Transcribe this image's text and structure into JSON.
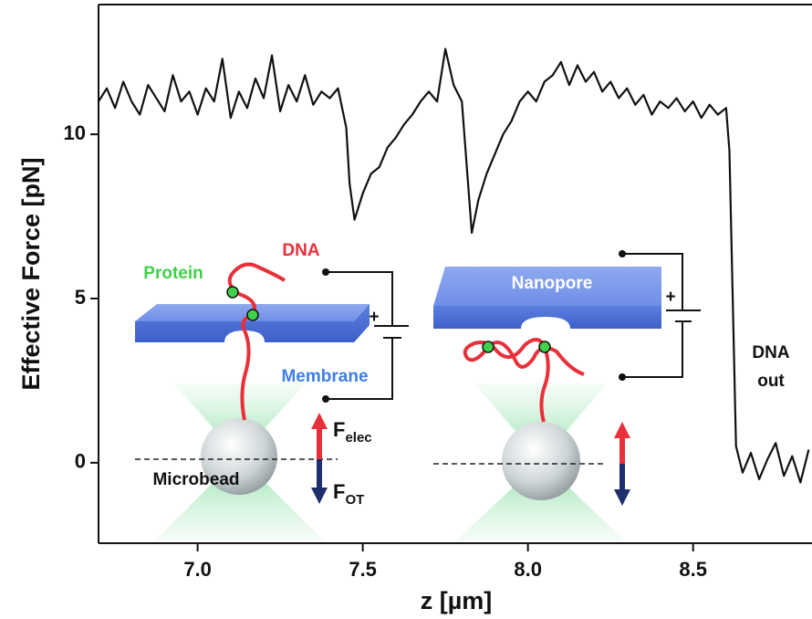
{
  "chart_data": {
    "type": "line",
    "x_label": "z [µm]",
    "y_label": "Effective Force [pN]",
    "color": "#111111",
    "x": [
      6.7,
      6.725,
      6.75,
      6.775,
      6.8,
      6.825,
      6.85,
      6.875,
      6.9,
      6.925,
      6.95,
      6.975,
      7.0,
      7.025,
      7.05,
      7.075,
      7.1,
      7.125,
      7.15,
      7.175,
      7.2,
      7.225,
      7.25,
      7.275,
      7.3,
      7.325,
      7.35,
      7.375,
      7.4,
      7.425,
      7.45,
      7.46,
      7.475,
      7.5,
      7.525,
      7.55,
      7.575,
      7.6,
      7.625,
      7.65,
      7.675,
      7.7,
      7.725,
      7.75,
      7.775,
      7.8,
      7.815,
      7.83,
      7.85,
      7.875,
      7.9,
      7.925,
      7.95,
      7.975,
      8.0,
      8.025,
      8.05,
      8.075,
      8.1,
      8.125,
      8.15,
      8.175,
      8.2,
      8.225,
      8.25,
      8.275,
      8.3,
      8.325,
      8.35,
      8.375,
      8.4,
      8.425,
      8.45,
      8.475,
      8.5,
      8.525,
      8.55,
      8.575,
      8.6,
      8.61,
      8.62,
      8.63,
      8.65,
      8.675,
      8.7,
      8.725,
      8.75,
      8.775,
      8.8,
      8.825,
      8.85
    ],
    "values": [
      11.0,
      11.4,
      10.8,
      11.6,
      11.0,
      10.6,
      11.5,
      11.1,
      10.7,
      11.8,
      11.0,
      11.3,
      10.6,
      11.4,
      11.0,
      12.3,
      10.5,
      11.3,
      10.8,
      11.7,
      11.1,
      12.4,
      10.7,
      11.5,
      11.0,
      11.8,
      10.9,
      11.3,
      11.1,
      11.4,
      10.2,
      8.5,
      7.4,
      8.2,
      8.8,
      9.0,
      9.6,
      9.9,
      10.3,
      10.6,
      11.0,
      11.3,
      11.0,
      12.6,
      11.5,
      11.0,
      9.0,
      7.0,
      8.0,
      8.8,
      9.4,
      10.0,
      10.4,
      11.0,
      11.3,
      11.0,
      11.6,
      11.8,
      12.2,
      11.5,
      12.1,
      11.6,
      11.9,
      11.3,
      11.6,
      11.1,
      11.4,
      10.9,
      11.2,
      10.6,
      11.0,
      10.8,
      11.1,
      10.7,
      11.0,
      10.5,
      10.9,
      10.6,
      10.8,
      9.5,
      5.0,
      0.5,
      -0.3,
      0.3,
      -0.5,
      0.1,
      0.6,
      -0.4,
      0.2,
      -0.6,
      0.4
    ],
    "xlim": [
      6.7,
      8.86
    ],
    "ylim": [
      -2.45,
      13.95
    ],
    "xticks": [
      {
        "value": 7.0,
        "label": "7.0"
      },
      {
        "value": 7.5,
        "label": "7.5"
      },
      {
        "value": 8.0,
        "label": "8.0"
      },
      {
        "value": 8.5,
        "label": "8.5"
      }
    ],
    "yticks": [
      0,
      5,
      10
    ],
    "annotation": [
      "DNA",
      "out"
    ],
    "insets": [
      {
        "labels": {
          "dna": "DNA",
          "protein": "Protein",
          "membrane": "Membrane",
          "microbead": "Microbead",
          "plus": "+",
          "f_elec": {
            "main": "F",
            "sub": "elec"
          },
          "f_ot": {
            "main": "F",
            "sub": "OT"
          }
        }
      },
      {
        "labels": {
          "nanopore": "Nanopore",
          "plus": "+"
        }
      }
    ]
  }
}
